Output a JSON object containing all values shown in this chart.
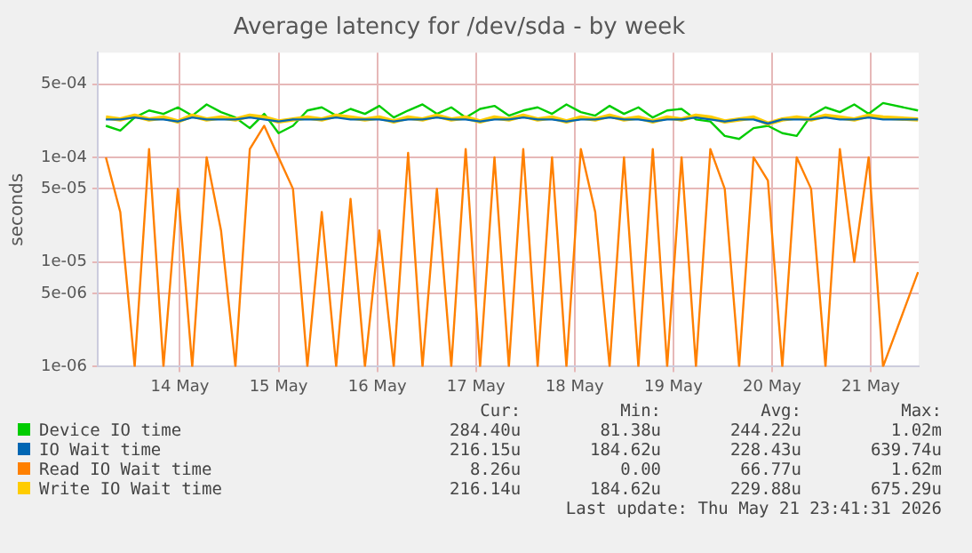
{
  "chart_data": {
    "type": "line",
    "title": "Average latency for /dev/sda - by week",
    "ylabel": "seconds",
    "log": "y",
    "grid": true,
    "legend": "bottom",
    "marker": "none",
    "line_style": "solid",
    "x": [
      "2026-05-13T18:00",
      "2026-05-13T21:30",
      "2026-05-14T01:00",
      "2026-05-14T04:30",
      "2026-05-14T08:00",
      "2026-05-14T11:30",
      "2026-05-14T15:00",
      "2026-05-14T18:30",
      "2026-05-14T22:00",
      "2026-05-15T01:30",
      "2026-05-15T05:00",
      "2026-05-15T08:30",
      "2026-05-15T12:00",
      "2026-05-15T15:30",
      "2026-05-15T19:00",
      "2026-05-15T22:30",
      "2026-05-16T02:00",
      "2026-05-16T05:30",
      "2026-05-16T09:00",
      "2026-05-16T12:30",
      "2026-05-16T16:00",
      "2026-05-16T19:30",
      "2026-05-16T23:00",
      "2026-05-17T02:30",
      "2026-05-17T06:00",
      "2026-05-17T09:30",
      "2026-05-17T13:00",
      "2026-05-17T16:30",
      "2026-05-17T20:00",
      "2026-05-17T23:30",
      "2026-05-18T03:00",
      "2026-05-18T06:30",
      "2026-05-18T10:00",
      "2026-05-18T13:30",
      "2026-05-18T17:00",
      "2026-05-18T20:30",
      "2026-05-19T00:00",
      "2026-05-19T03:30",
      "2026-05-19T07:00",
      "2026-05-19T10:30",
      "2026-05-19T14:00",
      "2026-05-19T17:30",
      "2026-05-19T21:00",
      "2026-05-20T00:30",
      "2026-05-20T04:00",
      "2026-05-20T07:30",
      "2026-05-20T11:00",
      "2026-05-20T14:30",
      "2026-05-20T18:00",
      "2026-05-20T21:30",
      "2026-05-21T01:00",
      "2026-05-21T04:30",
      "2026-05-21T08:00",
      "2026-05-21T11:30",
      "2026-05-21T15:00",
      "2026-05-21T23:30"
    ],
    "xlim": [
      "2026-05-13T16:00",
      "2026-05-21T23:40"
    ],
    "xticks": [
      {
        "value": "2026-05-14T12:00",
        "label": "14 May"
      },
      {
        "value": "2026-05-15T12:00",
        "label": "15 May"
      },
      {
        "value": "2026-05-16T12:00",
        "label": "16 May"
      },
      {
        "value": "2026-05-17T12:00",
        "label": "17 May"
      },
      {
        "value": "2026-05-18T12:00",
        "label": "18 May"
      },
      {
        "value": "2026-05-19T12:00",
        "label": "19 May"
      },
      {
        "value": "2026-05-20T12:00",
        "label": "20 May"
      },
      {
        "value": "2026-05-21T12:00",
        "label": "21 May"
      }
    ],
    "ylim": [
      1e-06,
      0.001
    ],
    "yticks": [
      {
        "value": 1e-06,
        "label": "1e-06"
      },
      {
        "value": 5e-06,
        "label": "5e-06"
      },
      {
        "value": 1e-05,
        "label": "1e-05"
      },
      {
        "value": 5e-05,
        "label": "5e-05"
      },
      {
        "value": 0.0001,
        "label": "1e-04"
      },
      {
        "value": 0.0005,
        "label": "5e-04"
      }
    ],
    "series": [
      {
        "name": "Device IO time",
        "color": "#00cc00",
        "values": [
          0.0002,
          0.00018,
          0.00024,
          0.00028,
          0.00026,
          0.0003,
          0.00025,
          0.00032,
          0.00027,
          0.00024,
          0.00019,
          0.00026,
          0.00017,
          0.0002,
          0.00028,
          0.0003,
          0.00025,
          0.00029,
          0.00026,
          0.00031,
          0.00024,
          0.00028,
          0.00032,
          0.00026,
          0.0003,
          0.00024,
          0.00029,
          0.00031,
          0.00025,
          0.00028,
          0.0003,
          0.00026,
          0.00032,
          0.00027,
          0.00025,
          0.00031,
          0.00026,
          0.0003,
          0.00024,
          0.00028,
          0.00029,
          0.00023,
          0.00022,
          0.00016,
          0.00015,
          0.00019,
          0.0002,
          0.00017,
          0.00016,
          0.00025,
          0.0003,
          0.00027,
          0.00032,
          0.00026,
          0.00033,
          0.00028
        ]
      },
      {
        "name": "IO Wait time",
        "color": "#0066b3",
        "values": [
          0.00023,
          0.00023,
          0.00024,
          0.00023,
          0.00023,
          0.00022,
          0.00024,
          0.00023,
          0.00023,
          0.00023,
          0.00024,
          0.00023,
          0.00022,
          0.00023,
          0.00023,
          0.00023,
          0.00024,
          0.00023,
          0.00023,
          0.00023,
          0.00022,
          0.00023,
          0.00023,
          0.00024,
          0.00023,
          0.00023,
          0.00022,
          0.00023,
          0.00023,
          0.00024,
          0.00023,
          0.00023,
          0.00022,
          0.00023,
          0.00023,
          0.00024,
          0.00023,
          0.00023,
          0.00022,
          0.00023,
          0.00023,
          0.00024,
          0.00023,
          0.00022,
          0.00023,
          0.00023,
          0.00021,
          0.00023,
          0.00023,
          0.00023,
          0.00024,
          0.00023,
          0.00023,
          0.00024,
          0.00023,
          0.00023
        ]
      },
      {
        "name": "Read IO Wait time",
        "color": "#ff8000",
        "values": [
          0.0001,
          3e-05,
          1e-06,
          0.00012,
          1e-06,
          5e-05,
          1e-06,
          0.0001,
          2e-05,
          1e-06,
          0.00012,
          0.0002,
          0.0001,
          5e-05,
          1e-06,
          3e-05,
          1e-06,
          4e-05,
          1e-06,
          2e-05,
          1e-06,
          0.00011,
          1e-06,
          5e-05,
          1e-06,
          0.00012,
          1e-06,
          0.0001,
          1e-06,
          0.00012,
          1e-06,
          0.0001,
          1e-06,
          0.00012,
          3e-05,
          1e-06,
          0.0001,
          1e-06,
          0.00012,
          1e-06,
          0.0001,
          1e-06,
          0.00012,
          5e-05,
          1e-06,
          0.0001,
          6e-05,
          1e-06,
          0.0001,
          5e-05,
          1e-06,
          0.00012,
          1e-05,
          0.0001,
          1e-06,
          8e-06
        ]
      },
      {
        "name": "Write IO Wait time",
        "color": "#ffcc00",
        "values": [
          0.00024,
          0.00023,
          0.00025,
          0.00023,
          0.00024,
          0.00022,
          0.00025,
          0.00023,
          0.00024,
          0.00023,
          0.00025,
          0.00024,
          0.00022,
          0.00023,
          0.00024,
          0.00023,
          0.00025,
          0.00024,
          0.00023,
          0.00024,
          0.00022,
          0.00024,
          0.00023,
          0.00025,
          0.00023,
          0.00024,
          0.00022,
          0.00024,
          0.00023,
          0.00025,
          0.00023,
          0.00024,
          0.00022,
          0.00024,
          0.00023,
          0.00025,
          0.00023,
          0.00024,
          0.00022,
          0.00024,
          0.00023,
          0.00025,
          0.00024,
          0.00022,
          0.00023,
          0.00024,
          0.00021,
          0.00023,
          0.00024,
          0.00023,
          0.00025,
          0.00024,
          0.00023,
          0.00025,
          0.00024,
          0.00023
        ]
      }
    ],
    "annotations": [
      "Cur:",
      "Min:",
      "Avg:",
      "Max:",
      "284.40u",
      "81.38u",
      "244.22u",
      "1.02m",
      "216.15u",
      "184.62u",
      "228.43u",
      "639.74u",
      "8.26u",
      "0.00",
      "66.77u",
      "1.62m",
      "216.14u",
      "184.62u",
      "229.88u",
      "675.29u",
      "Last update: Thu May 21 23:41:31 2026"
    ]
  }
}
